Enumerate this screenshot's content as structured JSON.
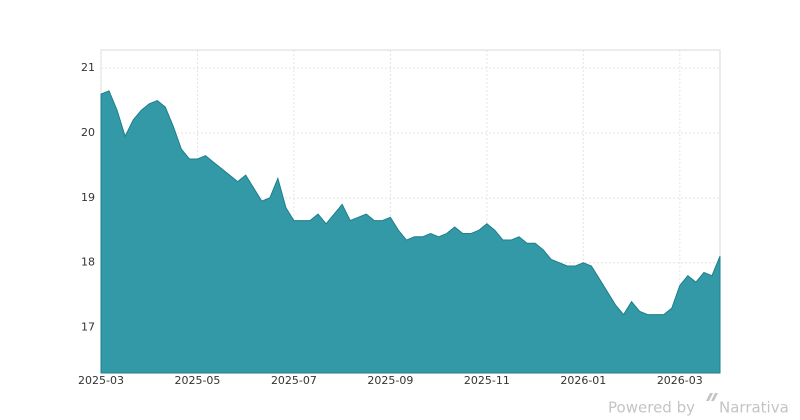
{
  "chart_data": {
    "type": "area",
    "categories": [
      "2025-03",
      null,
      null,
      null,
      null,
      null,
      null,
      null,
      null,
      null,
      null,
      null,
      "2025-05",
      null,
      null,
      null,
      null,
      null,
      null,
      null,
      null,
      null,
      null,
      null,
      "2025-07",
      null,
      null,
      null,
      null,
      null,
      null,
      null,
      null,
      null,
      null,
      null,
      "2025-09",
      null,
      null,
      null,
      null,
      null,
      null,
      null,
      null,
      null,
      null,
      null,
      "2025-11",
      null,
      null,
      null,
      null,
      null,
      null,
      null,
      null,
      null,
      null,
      null,
      "2026-01",
      null,
      null,
      null,
      null,
      null,
      null,
      null,
      null,
      null,
      null,
      null,
      "2026-03",
      null,
      null,
      null,
      null,
      null
    ],
    "values": [
      20.6,
      20.65,
      20.35,
      19.95,
      20.2,
      20.35,
      20.45,
      20.5,
      20.4,
      20.1,
      19.75,
      19.6,
      19.6,
      19.65,
      19.55,
      19.45,
      19.35,
      19.25,
      19.35,
      19.15,
      18.95,
      19.0,
      19.3,
      18.85,
      18.65,
      18.65,
      18.65,
      18.75,
      18.6,
      18.75,
      18.9,
      18.65,
      18.7,
      18.75,
      18.65,
      18.65,
      18.7,
      18.5,
      18.35,
      18.4,
      18.4,
      18.45,
      18.4,
      18.45,
      18.55,
      18.45,
      18.45,
      18.5,
      18.6,
      18.5,
      18.35,
      18.35,
      18.4,
      18.3,
      18.3,
      18.2,
      18.05,
      18.0,
      17.95,
      17.95,
      18.0,
      17.95,
      17.75,
      17.55,
      17.35,
      17.2,
      17.4,
      17.25,
      17.2,
      17.2,
      17.2,
      17.3,
      17.65,
      17.8,
      17.7,
      17.85,
      17.8,
      18.1
    ],
    "color": "#3399a6",
    "ylim": [
      16.3,
      21.28
    ],
    "yticks": [
      17,
      18,
      19,
      20,
      21
    ],
    "grid": true
  },
  "footer": {
    "powered": "Powered by",
    "brand": "Narrativa"
  }
}
